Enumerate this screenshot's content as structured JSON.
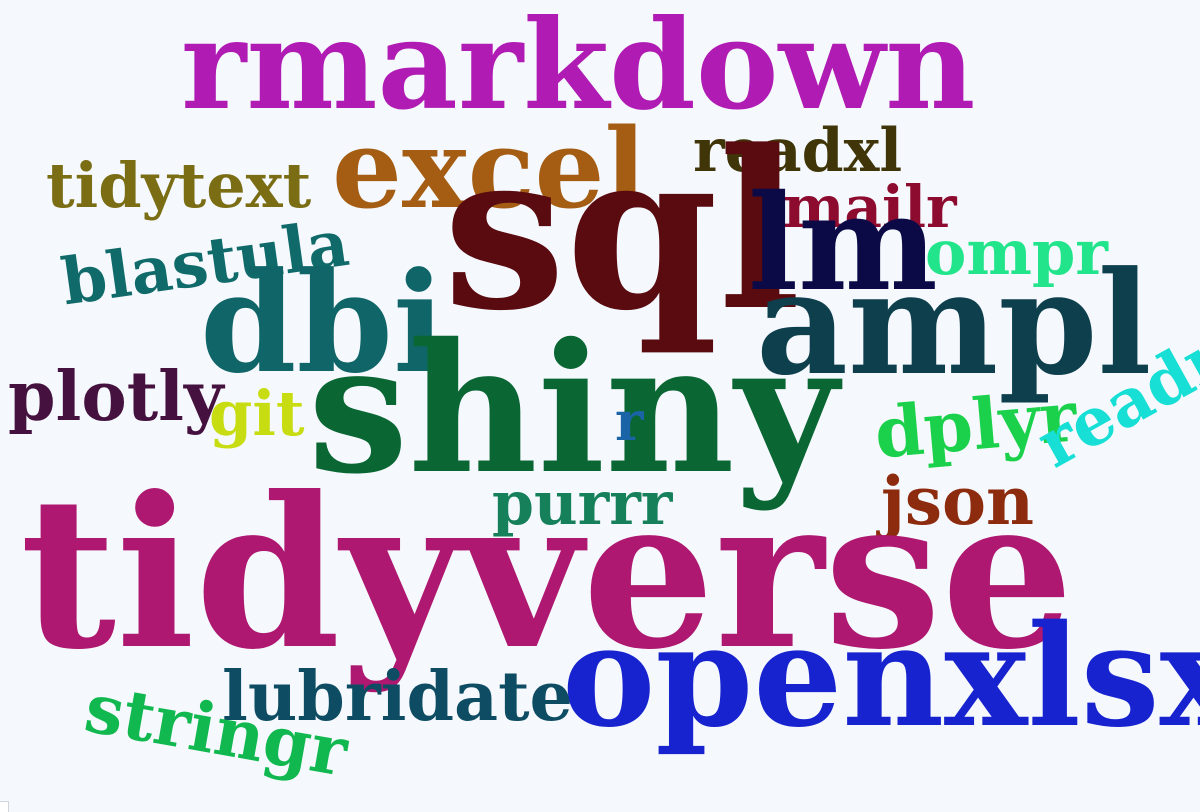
{
  "words": {
    "rmarkdown": {
      "text": "rmarkdown",
      "color": "#b01bb3"
    },
    "excel": {
      "text": "excel",
      "color": "#a45d13"
    },
    "readxl": {
      "text": "readxl",
      "color": "#3f3508"
    },
    "tidytext": {
      "text": "tidytext",
      "color": "#7a6d14"
    },
    "mailr": {
      "text": "mailr",
      "color": "#8d0b2f"
    },
    "sql": {
      "text": "sql",
      "color": "#5a0b10"
    },
    "lm": {
      "text": "lm",
      "color": "#0b0a47"
    },
    "ompr": {
      "text": "ompr",
      "color": "#21e48b"
    },
    "blastula": {
      "text": "blastula",
      "color": "#106a6a"
    },
    "dbi": {
      "text": "dbi",
      "color": "#0f6567"
    },
    "ampl": {
      "text": "ampl",
      "color": "#0e3f4d"
    },
    "plotly": {
      "text": "plotly",
      "color": "#45113f"
    },
    "git": {
      "text": "git",
      "color": "#c8dc12"
    },
    "shiny": {
      "text": "shiny",
      "color": "#0a6734"
    },
    "r": {
      "text": "r",
      "color": "#1a63a6"
    },
    "dplyr": {
      "text": "dplyr",
      "color": "#1bd14c"
    },
    "readr": {
      "text": "readr",
      "color": "#17dfd6"
    },
    "purrr": {
      "text": "purrr",
      "color": "#15805a"
    },
    "json": {
      "text": "json",
      "color": "#8c2b0e"
    },
    "tidyverse": {
      "text": "tidyverse",
      "color": "#ae1870"
    },
    "openxlsx": {
      "text": "openxlsx",
      "color": "#1723cf"
    },
    "lubridate": {
      "text": "lubridate",
      "color": "#0d4c63"
    },
    "stringr": {
      "text": "stringr",
      "color": "#10b84f"
    }
  },
  "background_color": "#f5f9fd"
}
